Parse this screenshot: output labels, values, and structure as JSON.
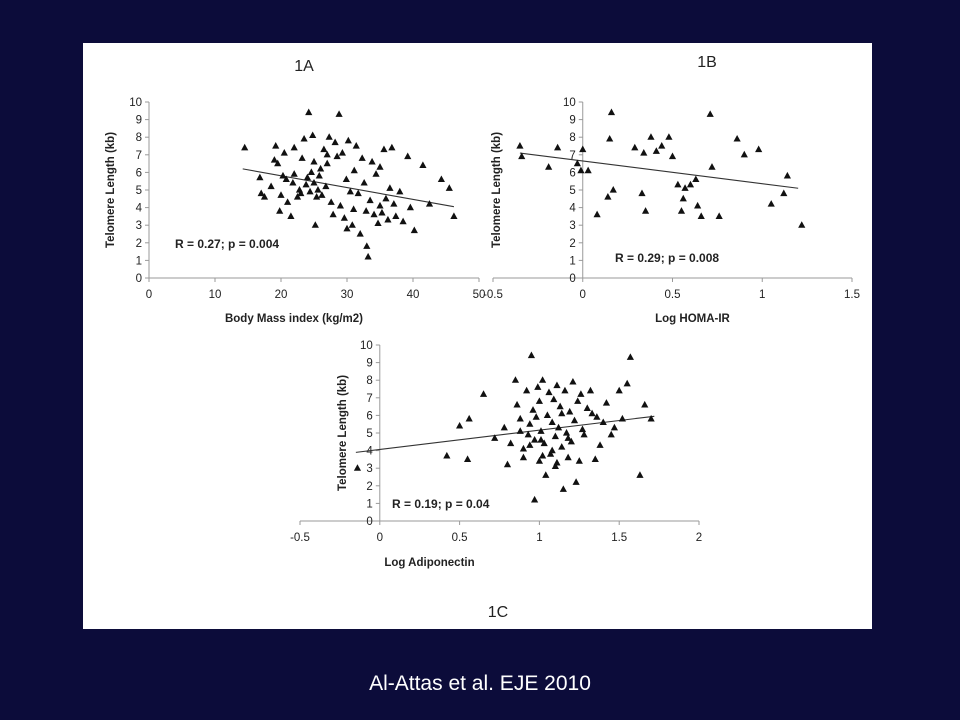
{
  "citation": "Al-Attas et al. EJE 2010",
  "chart_data": [
    {
      "id": "1A",
      "type": "scatter",
      "title": "1A",
      "xlabel": "Body Mass index (kg/m2)",
      "ylabel": "Telomere Length (kb)",
      "annotation": "R = 0.27; p = 0.004",
      "xlim": [
        0,
        50
      ],
      "ylim": [
        0,
        10
      ],
      "xticks": [
        0,
        10,
        20,
        30,
        40,
        50
      ],
      "yticks": [
        0,
        1,
        2,
        3,
        4,
        5,
        6,
        7,
        8,
        9,
        10
      ],
      "trendline": [
        [
          14.2,
          6.2
        ],
        [
          46.2,
          4.05
        ]
      ],
      "points": [
        [
          14.5,
          7.4
        ],
        [
          16.8,
          5.7
        ],
        [
          17.0,
          4.8
        ],
        [
          17.5,
          4.6
        ],
        [
          18.5,
          5.2
        ],
        [
          19.0,
          6.7
        ],
        [
          19.2,
          7.5
        ],
        [
          19.5,
          6.5
        ],
        [
          19.8,
          3.8
        ],
        [
          20.0,
          4.7
        ],
        [
          20.3,
          5.8
        ],
        [
          20.5,
          7.1
        ],
        [
          20.8,
          5.6
        ],
        [
          21.0,
          4.3
        ],
        [
          21.5,
          3.5
        ],
        [
          21.8,
          5.4
        ],
        [
          22.0,
          7.4
        ],
        [
          22.5,
          4.6
        ],
        [
          22.8,
          5.0
        ],
        [
          23.0,
          4.8
        ],
        [
          23.2,
          6.8
        ],
        [
          23.5,
          7.9
        ],
        [
          23.8,
          5.3
        ],
        [
          24.0,
          5.7
        ],
        [
          24.2,
          9.4
        ],
        [
          24.4,
          4.9
        ],
        [
          24.6,
          6.0
        ],
        [
          24.8,
          8.1
        ],
        [
          25.0,
          5.4
        ],
        [
          25.2,
          3.0
        ],
        [
          25.4,
          4.6
        ],
        [
          25.6,
          5.0
        ],
        [
          25.8,
          5.8
        ],
        [
          26.0,
          6.2
        ],
        [
          26.2,
          4.7
        ],
        [
          26.5,
          7.3
        ],
        [
          26.8,
          5.2
        ],
        [
          27.0,
          6.5
        ],
        [
          27.3,
          8.0
        ],
        [
          27.6,
          4.3
        ],
        [
          27.9,
          3.6
        ],
        [
          28.2,
          7.7
        ],
        [
          28.5,
          6.9
        ],
        [
          28.8,
          9.3
        ],
        [
          29.0,
          4.1
        ],
        [
          29.3,
          7.1
        ],
        [
          29.6,
          3.4
        ],
        [
          29.9,
          5.6
        ],
        [
          30.2,
          7.8
        ],
        [
          30.5,
          4.9
        ],
        [
          30.8,
          3.0
        ],
        [
          31.1,
          6.1
        ],
        [
          31.4,
          7.5
        ],
        [
          31.7,
          4.8
        ],
        [
          32.0,
          2.5
        ],
        [
          32.3,
          6.8
        ],
        [
          32.6,
          5.4
        ],
        [
          32.9,
          3.8
        ],
        [
          33.2,
          1.2
        ],
        [
          33.5,
          4.4
        ],
        [
          33.8,
          6.6
        ],
        [
          34.1,
          3.6
        ],
        [
          34.4,
          5.9
        ],
        [
          34.7,
          3.1
        ],
        [
          35.0,
          6.3
        ],
        [
          35.3,
          3.7
        ],
        [
          35.6,
          7.3
        ],
        [
          35.9,
          4.5
        ],
        [
          36.2,
          3.3
        ],
        [
          36.5,
          5.1
        ],
        [
          36.8,
          7.4
        ],
        [
          37.1,
          4.2
        ],
        [
          37.4,
          3.5
        ],
        [
          38.0,
          4.9
        ],
        [
          38.5,
          3.2
        ],
        [
          39.2,
          6.9
        ],
        [
          39.6,
          4.0
        ],
        [
          40.2,
          2.7
        ],
        [
          41.5,
          6.4
        ],
        [
          42.5,
          4.2
        ],
        [
          44.3,
          5.6
        ],
        [
          45.5,
          5.1
        ],
        [
          46.2,
          3.5
        ],
        [
          30.0,
          2.8
        ],
        [
          33.0,
          1.8
        ],
        [
          25.0,
          6.6
        ],
        [
          27.0,
          7.0
        ],
        [
          31.0,
          3.9
        ],
        [
          35.0,
          4.1
        ],
        [
          22.0,
          5.9
        ]
      ]
    },
    {
      "id": "1B",
      "type": "scatter",
      "title": "1B",
      "xlabel": "Log HOMA-IR",
      "ylabel": "Telomere Length (kb)",
      "annotation": "R = 0.29; p = 0.008",
      "xlim": [
        -0.5,
        1.5
      ],
      "ylim": [
        0,
        10
      ],
      "xticks": [
        -0.5,
        0,
        0.5,
        1,
        1.5
      ],
      "yticks": [
        0,
        1,
        2,
        3,
        4,
        5,
        6,
        7,
        8,
        9,
        10
      ],
      "trendline": [
        [
          -0.35,
          7.1
        ],
        [
          1.2,
          5.1
        ]
      ],
      "points": [
        [
          -0.35,
          7.5
        ],
        [
          -0.34,
          6.9
        ],
        [
          -0.19,
          6.3
        ],
        [
          -0.14,
          7.4
        ],
        [
          -0.03,
          6.5
        ],
        [
          -0.01,
          6.1
        ],
        [
          0.0,
          7.3
        ],
        [
          0.03,
          6.1
        ],
        [
          0.08,
          3.6
        ],
        [
          0.14,
          4.6
        ],
        [
          0.15,
          7.9
        ],
        [
          0.16,
          9.4
        ],
        [
          0.17,
          5.0
        ],
        [
          0.29,
          7.4
        ],
        [
          0.33,
          4.8
        ],
        [
          0.34,
          7.1
        ],
        [
          0.35,
          3.8
        ],
        [
          0.38,
          8.0
        ],
        [
          0.41,
          7.2
        ],
        [
          0.44,
          7.5
        ],
        [
          0.48,
          8.0
        ],
        [
          0.5,
          6.9
        ],
        [
          0.53,
          5.3
        ],
        [
          0.55,
          3.8
        ],
        [
          0.56,
          4.5
        ],
        [
          0.57,
          5.1
        ],
        [
          0.6,
          5.3
        ],
        [
          0.63,
          5.6
        ],
        [
          0.64,
          4.1
        ],
        [
          0.66,
          3.5
        ],
        [
          0.71,
          9.3
        ],
        [
          0.72,
          6.3
        ],
        [
          0.76,
          3.5
        ],
        [
          0.86,
          7.9
        ],
        [
          0.9,
          7.0
        ],
        [
          0.98,
          7.3
        ],
        [
          1.05,
          4.2
        ],
        [
          1.12,
          4.8
        ],
        [
          1.14,
          5.8
        ],
        [
          1.22,
          3.0
        ]
      ]
    },
    {
      "id": "1C",
      "type": "scatter",
      "title": "1C",
      "xlabel": "Log Adiponectin",
      "ylabel": "Telomere Length (kb)",
      "annotation": "R = 0.19; p = 0.04",
      "xlim": [
        -0.5,
        2
      ],
      "ylim": [
        0,
        10
      ],
      "xticks": [
        -0.5,
        0,
        0.5,
        1,
        1.5,
        2
      ],
      "yticks": [
        0,
        1,
        2,
        3,
        4,
        5,
        6,
        7,
        8,
        9,
        10
      ],
      "trendline": [
        [
          -0.15,
          3.9
        ],
        [
          1.72,
          5.95
        ]
      ],
      "points": [
        [
          -0.14,
          3.0
        ],
        [
          0.42,
          3.7
        ],
        [
          0.5,
          5.4
        ],
        [
          0.55,
          3.5
        ],
        [
          0.56,
          5.8
        ],
        [
          0.65,
          7.2
        ],
        [
          0.72,
          4.7
        ],
        [
          0.78,
          5.3
        ],
        [
          0.8,
          3.2
        ],
        [
          0.82,
          4.4
        ],
        [
          0.85,
          8.0
        ],
        [
          0.86,
          6.6
        ],
        [
          0.88,
          5.8
        ],
        [
          0.9,
          4.1
        ],
        [
          0.9,
          3.6
        ],
        [
          0.92,
          7.4
        ],
        [
          0.93,
          4.9
        ],
        [
          0.94,
          5.5
        ],
        [
          0.95,
          9.4
        ],
        [
          0.96,
          6.3
        ],
        [
          0.97,
          4.6
        ],
        [
          0.98,
          5.9
        ],
        [
          0.99,
          7.6
        ],
        [
          1.0,
          3.4
        ],
        [
          1.0,
          6.8
        ],
        [
          1.01,
          5.1
        ],
        [
          1.02,
          8.0
        ],
        [
          1.03,
          4.4
        ],
        [
          1.04,
          2.6
        ],
        [
          1.05,
          6.0
        ],
        [
          1.06,
          7.3
        ],
        [
          1.07,
          3.8
        ],
        [
          1.08,
          5.6
        ],
        [
          1.09,
          6.9
        ],
        [
          1.1,
          4.8
        ],
        [
          1.1,
          3.1
        ],
        [
          1.11,
          7.7
        ],
        [
          1.12,
          5.3
        ],
        [
          1.13,
          6.5
        ],
        [
          1.14,
          4.2
        ],
        [
          1.15,
          1.8
        ],
        [
          1.16,
          7.4
        ],
        [
          1.17,
          5.0
        ],
        [
          1.18,
          3.6
        ],
        [
          1.19,
          6.2
        ],
        [
          1.2,
          4.5
        ],
        [
          1.21,
          7.9
        ],
        [
          1.22,
          5.7
        ],
        [
          1.24,
          6.8
        ],
        [
          1.25,
          3.4
        ],
        [
          1.26,
          7.2
        ],
        [
          1.28,
          4.9
        ],
        [
          1.3,
          6.4
        ],
        [
          1.32,
          7.4
        ],
        [
          1.35,
          3.5
        ],
        [
          1.36,
          5.9
        ],
        [
          1.38,
          4.3
        ],
        [
          1.4,
          5.6
        ],
        [
          1.42,
          6.7
        ],
        [
          1.45,
          4.9
        ],
        [
          1.47,
          5.3
        ],
        [
          1.5,
          7.4
        ],
        [
          1.52,
          5.8
        ],
        [
          1.55,
          7.8
        ],
        [
          1.57,
          9.3
        ],
        [
          1.63,
          2.6
        ],
        [
          1.66,
          6.6
        ],
        [
          1.7,
          5.8
        ],
        [
          1.23,
          2.2
        ],
        [
          0.97,
          1.2
        ],
        [
          1.08,
          4.0
        ],
        [
          1.14,
          6.1
        ],
        [
          1.02,
          3.7
        ],
        [
          0.88,
          5.1
        ],
        [
          1.18,
          4.7
        ],
        [
          1.27,
          5.2
        ],
        [
          0.94,
          4.3
        ],
        [
          1.33,
          6.1
        ],
        [
          1.11,
          3.3
        ],
        [
          1.01,
          4.6
        ]
      ]
    }
  ]
}
